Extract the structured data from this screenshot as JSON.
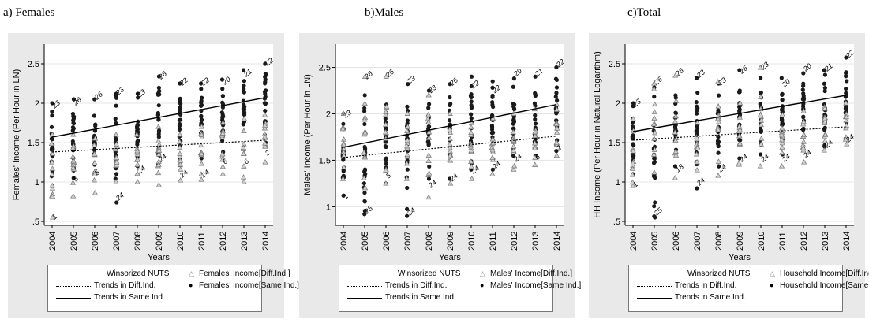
{
  "panels": [
    {
      "caption": "a) Females",
      "ylabel": "Females' Income (Per Hour in LN)",
      "xlabel": "Years",
      "yticks": [
        "2.5",
        "2",
        "1.5",
        "1",
        ".5"
      ],
      "legend": {
        "winsorized": "Winsorized NUTS",
        "diff_points": "Females' Income[Diff.Ind.]",
        "diff_trend": "Trends in Diff.Ind.",
        "same_points": "Females' Income[Same Ind.]",
        "same_trend": "Trends in Same Ind."
      }
    },
    {
      "caption": "b)Males",
      "ylabel": "Males' Income (Per Hour in LN)",
      "xlabel": "Years",
      "yticks": [
        "2.5",
        "2",
        "1.5",
        "1"
      ],
      "legend": {
        "winsorized": "Winsorized NUTS",
        "diff_points": "Males' Income[Diff.Ind.]",
        "diff_trend": "Trends in Diff.Ind.",
        "same_points": "Males' Income[Same Ind.]",
        "same_trend": "Trends in Same Ind."
      }
    },
    {
      "caption": "c)Total",
      "ylabel": "HH Income (Per Hour in Natural Logarithm)",
      "xlabel": "Years",
      "yticks": [
        "2.5",
        "2",
        "1.5",
        "1",
        ".5"
      ],
      "legend": {
        "winsorized": "Winsorized NUTS",
        "diff_points": "Household Income[Diff.Ind.]",
        "diff_trend": "Trends in Diff.Ind.",
        "same_points": "Household Income[Same Ind.]",
        "same_trend": "Trends in Same Ind."
      }
    }
  ],
  "chart_data": [
    {
      "type": "scatter",
      "x": [
        2004,
        2005,
        2006,
        2007,
        2008,
        2009,
        2010,
        2011,
        2012,
        2013,
        2014
      ],
      "ylim": [
        0.45,
        2.75
      ],
      "series": [
        {
          "name": "Females' Income[Same Ind.]",
          "marker": "dot",
          "min": [
            0.95,
            1.05,
            1.12,
            0.74,
            1.2,
            1.22,
            1.3,
            1.3,
            1.38,
            1.45,
            1.5
          ],
          "max": [
            2.0,
            2.05,
            2.05,
            2.12,
            2.12,
            2.34,
            2.25,
            2.25,
            2.3,
            2.42,
            2.5
          ]
        },
        {
          "name": "Females' Income[Diff.Ind.]",
          "marker": "triangle",
          "min": [
            0.55,
            0.82,
            0.86,
            1.0,
            1.0,
            0.96,
            1.02,
            1.03,
            1.1,
            1.0,
            1.25
          ],
          "max": [
            1.6,
            1.6,
            1.55,
            1.6,
            1.6,
            1.7,
            1.6,
            1.7,
            1.75,
            1.8,
            1.85
          ]
        },
        {
          "name": "Trends in Diff.Ind.",
          "line": "dotted",
          "y": [
            1.38,
            1.53
          ]
        },
        {
          "name": "Trends in Same Ind.",
          "line": "solid",
          "y": [
            1.57,
            2.07
          ]
        }
      ],
      "annotations": [
        {
          "x": 2004,
          "y": 1.93,
          "text": "23"
        },
        {
          "x": 2004,
          "y": 0.52,
          "text": "1"
        },
        {
          "x": 2005,
          "y": 1.97,
          "text": "26"
        },
        {
          "x": 2005,
          "y": 1.0,
          "text": "5"
        },
        {
          "x": 2006,
          "y": 2.04,
          "text": "26"
        },
        {
          "x": 2006,
          "y": 1.08,
          "text": "5"
        },
        {
          "x": 2007,
          "y": 2.1,
          "text": "23"
        },
        {
          "x": 2007,
          "y": 0.76,
          "text": "24"
        },
        {
          "x": 2008,
          "y": 2.07,
          "text": "23"
        },
        {
          "x": 2008,
          "y": 1.1,
          "text": "24"
        },
        {
          "x": 2009,
          "y": 2.3,
          "text": "26"
        },
        {
          "x": 2009,
          "y": 1.25,
          "text": "24"
        },
        {
          "x": 2010,
          "y": 2.22,
          "text": "22"
        },
        {
          "x": 2010,
          "y": 1.05,
          "text": "24"
        },
        {
          "x": 2011,
          "y": 2.22,
          "text": "22"
        },
        {
          "x": 2011,
          "y": 1.05,
          "text": "24"
        },
        {
          "x": 2012,
          "y": 2.23,
          "text": "20"
        },
        {
          "x": 2012,
          "y": 1.22,
          "text": "6"
        },
        {
          "x": 2013,
          "y": 2.33,
          "text": "21"
        },
        {
          "x": 2013,
          "y": 1.22,
          "text": "6"
        },
        {
          "x": 2014,
          "y": 2.47,
          "text": "22"
        },
        {
          "x": 2014,
          "y": 1.33,
          "text": "2"
        }
      ]
    },
    {
      "type": "scatter",
      "x": [
        2004,
        2005,
        2006,
        2007,
        2008,
        2009,
        2010,
        2011,
        2012,
        2013,
        2014
      ],
      "ylim": [
        0.8,
        2.75
      ],
      "series": [
        {
          "name": "Males' Income[Same Ind.]",
          "marker": "dot",
          "min": [
            1.12,
            0.92,
            1.25,
            0.9,
            1.3,
            1.3,
            1.4,
            1.4,
            1.55,
            1.55,
            1.6
          ],
          "max": [
            2.0,
            2.2,
            2.1,
            2.32,
            2.25,
            2.32,
            2.4,
            2.35,
            2.38,
            2.4,
            2.5
          ]
        },
        {
          "name": "Males' Income[Diff.Ind.]",
          "marker": "triangle",
          "min": [
            1.3,
            1.2,
            1.25,
            1.3,
            1.1,
            1.25,
            1.3,
            1.35,
            1.4,
            1.45,
            1.55
          ],
          "max": [
            2.0,
            2.4,
            2.4,
            2.0,
            2.2,
            2.0,
            1.9,
            1.95,
            2.0,
            2.05,
            2.1
          ]
        },
        {
          "name": "Trends in Diff.Ind.",
          "line": "dotted",
          "y": [
            1.53,
            1.76
          ]
        },
        {
          "name": "Trends in Same Ind.",
          "line": "solid",
          "y": [
            1.64,
            2.1
          ]
        }
      ],
      "annotations": [
        {
          "x": 2004,
          "y": 1.95,
          "text": "23"
        },
        {
          "x": 2004,
          "y": 1.08,
          "text": "1"
        },
        {
          "x": 2005,
          "y": 2.37,
          "text": "26"
        },
        {
          "x": 2005,
          "y": 0.92,
          "text": "25"
        },
        {
          "x": 2006,
          "y": 2.39,
          "text": "26"
        },
        {
          "x": 2006,
          "y": 1.3,
          "text": "5"
        },
        {
          "x": 2007,
          "y": 2.32,
          "text": "23"
        },
        {
          "x": 2007,
          "y": 0.9,
          "text": "24"
        },
        {
          "x": 2008,
          "y": 2.22,
          "text": "23"
        },
        {
          "x": 2008,
          "y": 1.2,
          "text": "24"
        },
        {
          "x": 2009,
          "y": 2.3,
          "text": "26"
        },
        {
          "x": 2009,
          "y": 1.27,
          "text": "24"
        },
        {
          "x": 2010,
          "y": 2.27,
          "text": "22"
        },
        {
          "x": 2010,
          "y": 1.35,
          "text": "24"
        },
        {
          "x": 2011,
          "y": 2.22,
          "text": "22"
        },
        {
          "x": 2011,
          "y": 1.4,
          "text": "24"
        },
        {
          "x": 2012,
          "y": 2.4,
          "text": "20"
        },
        {
          "x": 2012,
          "y": 1.48,
          "text": "24"
        },
        {
          "x": 2013,
          "y": 2.4,
          "text": "21"
        },
        {
          "x": 2013,
          "y": 1.5,
          "text": "6"
        },
        {
          "x": 2014,
          "y": 2.5,
          "text": "22"
        },
        {
          "x": 2014,
          "y": 1.6,
          "text": "2"
        }
      ]
    },
    {
      "type": "scatter",
      "x": [
        2004,
        2005,
        2006,
        2007,
        2008,
        2009,
        2010,
        2011,
        2012,
        2013,
        2014
      ],
      "ylim": [
        0.45,
        2.75
      ],
      "series": [
        {
          "name": "Household Income[Same Ind.]",
          "marker": "dot",
          "min": [
            1.1,
            0.55,
            1.2,
            0.92,
            1.2,
            1.3,
            1.35,
            1.35,
            1.45,
            1.45,
            1.55
          ],
          "max": [
            2.0,
            2.2,
            2.1,
            2.32,
            2.25,
            2.42,
            2.32,
            2.32,
            2.38,
            2.42,
            2.58
          ]
        },
        {
          "name": "Household Income[Diff.Ind.]",
          "marker": "triangle",
          "min": [
            0.95,
            1.12,
            1.05,
            1.15,
            1.08,
            1.22,
            1.2,
            1.2,
            1.25,
            1.4,
            1.48
          ],
          "max": [
            1.8,
            2.25,
            2.35,
            1.75,
            2.27,
            2.0,
            2.45,
            1.85,
            1.9,
            1.95,
            2.0
          ]
        },
        {
          "name": "Trends in Diff.Ind.",
          "line": "dotted",
          "y": [
            1.53,
            1.7
          ]
        },
        {
          "name": "Trends in Same Ind.",
          "line": "solid",
          "y": [
            1.64,
            2.1
          ]
        }
      ],
      "annotations": [
        {
          "x": 2004,
          "y": 1.95,
          "text": "23"
        },
        {
          "x": 2004,
          "y": 0.93,
          "text": "1"
        },
        {
          "x": 2005,
          "y": 2.23,
          "text": "26"
        },
        {
          "x": 2005,
          "y": 0.57,
          "text": "25"
        },
        {
          "x": 2006,
          "y": 2.34,
          "text": "26"
        },
        {
          "x": 2006,
          "y": 1.12,
          "text": "18"
        },
        {
          "x": 2007,
          "y": 2.32,
          "text": "23"
        },
        {
          "x": 2007,
          "y": 0.95,
          "text": "24"
        },
        {
          "x": 2008,
          "y": 2.22,
          "text": "23"
        },
        {
          "x": 2008,
          "y": 1.12,
          "text": "24"
        },
        {
          "x": 2009,
          "y": 2.37,
          "text": "26"
        },
        {
          "x": 2009,
          "y": 1.25,
          "text": "24"
        },
        {
          "x": 2010,
          "y": 2.42,
          "text": "23"
        },
        {
          "x": 2010,
          "y": 1.25,
          "text": "24"
        },
        {
          "x": 2011,
          "y": 2.2,
          "text": "20"
        },
        {
          "x": 2011,
          "y": 1.25,
          "text": "24"
        },
        {
          "x": 2012,
          "y": 2.4,
          "text": "20"
        },
        {
          "x": 2012,
          "y": 1.3,
          "text": "24"
        },
        {
          "x": 2013,
          "y": 2.4,
          "text": "21"
        },
        {
          "x": 2013,
          "y": 1.43,
          "text": "24"
        },
        {
          "x": 2014,
          "y": 2.57,
          "text": "22"
        },
        {
          "x": 2014,
          "y": 1.5,
          "text": "24"
        }
      ]
    }
  ]
}
